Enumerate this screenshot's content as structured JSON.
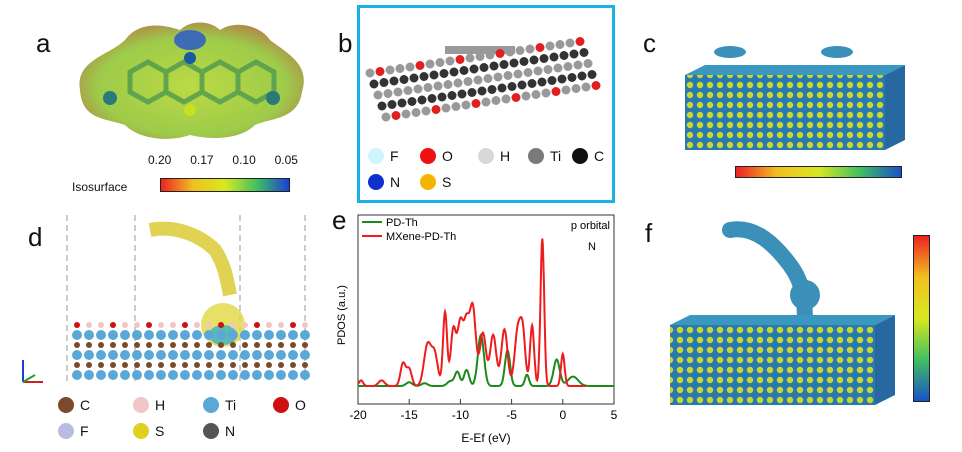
{
  "panels": {
    "a": {
      "label": "a",
      "colorbar_title": "Isosurface",
      "ticks": [
        "0.20",
        "0.17",
        "0.10",
        "0.05"
      ]
    },
    "b": {
      "label": "b",
      "legend": [
        {
          "name": "F",
          "color": "#cff4fb"
        },
        {
          "name": "O",
          "color": "#ee1111"
        },
        {
          "name": "H",
          "color": "#d8d8d8"
        },
        {
          "name": "Ti",
          "color": "#7a7a7a"
        },
        {
          "name": "C",
          "color": "#111111"
        },
        {
          "name": "N",
          "color": "#1030d0"
        },
        {
          "name": "S",
          "color": "#f4b400"
        }
      ],
      "border_color": "#1ab0e8"
    },
    "c": {
      "label": "c"
    },
    "d": {
      "label": "d",
      "legend": [
        {
          "name": "C",
          "color": "#7a4a2a"
        },
        {
          "name": "H",
          "color": "#f2c6c6"
        },
        {
          "name": "Ti",
          "color": "#5aa8d8"
        },
        {
          "name": "O",
          "color": "#d01010"
        },
        {
          "name": "F",
          "color": "#b8bce0"
        },
        {
          "name": "S",
          "color": "#e0d020"
        },
        {
          "name": "N",
          "color": "#555555"
        }
      ]
    },
    "e": {
      "label": "e"
    },
    "f": {
      "label": "f"
    }
  },
  "chart_data": {
    "type": "line",
    "title": "",
    "xlabel": "E-Ef (eV)",
    "ylabel": "PDOS (a.u.)",
    "xlim": [
      -20,
      5
    ],
    "ylim": [
      0,
      10
    ],
    "xticks": [
      "-20",
      "-15",
      "-10",
      "-5",
      "0",
      "5"
    ],
    "annotations": [
      "p orbital",
      "N"
    ],
    "legend_position": "top-left",
    "series": [
      {
        "name": "PD-Th",
        "color": "#1a8a1a",
        "baseline": 0.95,
        "x_range": [
          -20,
          5
        ],
        "peaks": [
          [
            -15,
            0.2,
            0.3
          ],
          [
            -13.5,
            0.15,
            0.3
          ],
          [
            -11,
            0.25,
            0.3
          ],
          [
            -10.3,
            0.75,
            0.25
          ],
          [
            -9.4,
            0.85,
            0.25
          ],
          [
            -8,
            2.7,
            0.3
          ],
          [
            -5.4,
            1.9,
            0.25
          ],
          [
            -3.5,
            0.6,
            0.2
          ],
          [
            -0.6,
            1.4,
            0.3
          ],
          [
            1,
            0.5,
            0.5
          ]
        ]
      },
      {
        "name": "MXene-PD-Th",
        "color": "#ee1c1c",
        "baseline": 0.95,
        "x_range": [
          -20,
          2.3
        ],
        "peaks": [
          [
            -19.7,
            0.3,
            0.2
          ],
          [
            -17.7,
            0.3,
            0.3
          ],
          [
            -15.6,
            1.2,
            0.25
          ],
          [
            -15,
            0.9,
            0.25
          ],
          [
            -13.2,
            2.2,
            0.35
          ],
          [
            -12.5,
            1.6,
            0.3
          ],
          [
            -11.5,
            3.9,
            0.2
          ],
          [
            -10.7,
            2.9,
            0.25
          ],
          [
            -10,
            3.4,
            0.3
          ],
          [
            -9.4,
            2.8,
            0.25
          ],
          [
            -8.8,
            4.2,
            0.3
          ],
          [
            -7.8,
            2.8,
            0.3
          ],
          [
            -6.8,
            2.7,
            0.3
          ],
          [
            -5.7,
            3.0,
            0.3
          ],
          [
            -4.4,
            2.9,
            0.3
          ],
          [
            -3.9,
            2.6,
            0.25
          ],
          [
            -3.0,
            3.2,
            0.2
          ],
          [
            -2.0,
            7.8,
            0.18
          ],
          [
            0,
            1.7,
            0.18
          ]
        ]
      }
    ]
  }
}
